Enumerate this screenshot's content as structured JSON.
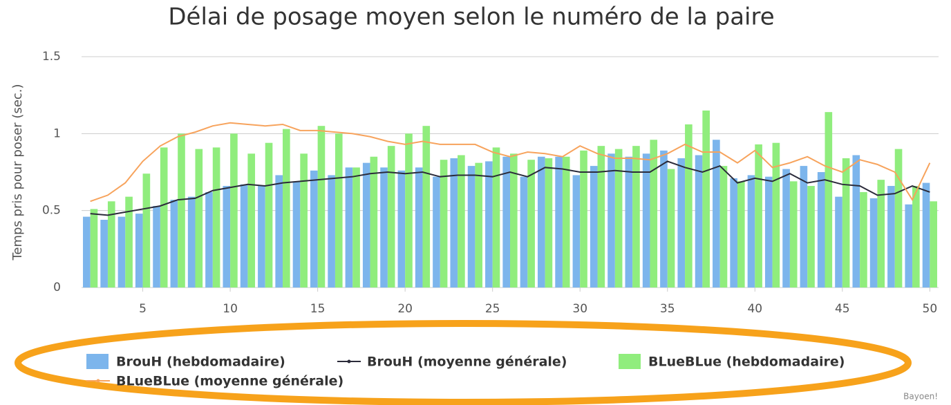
{
  "chart_data": {
    "type": "combo",
    "title": "Délai de posage moyen selon le numéro de la paire",
    "y_label": "Temps pris pour poser (sec.)",
    "credit": "Bayoen!",
    "x": [
      2,
      3,
      4,
      5,
      6,
      7,
      8,
      9,
      10,
      11,
      12,
      13,
      14,
      15,
      16,
      17,
      18,
      19,
      20,
      21,
      22,
      23,
      24,
      25,
      26,
      27,
      28,
      29,
      30,
      31,
      32,
      33,
      34,
      35,
      36,
      37,
      38,
      39,
      40,
      41,
      42,
      43,
      44,
      45,
      46,
      47,
      48,
      49,
      50
    ],
    "xlim": [
      1.5,
      50.5
    ],
    "xticks": [
      5,
      10,
      15,
      20,
      25,
      30,
      35,
      40,
      45,
      50
    ],
    "ylim": [
      0,
      1.5
    ],
    "yticks": [
      0,
      0.5,
      1,
      1.5
    ],
    "grid": true,
    "series": [
      {
        "name": "BrouH (hebdomadaire)",
        "type": "bar",
        "color": "#7cb5ec",
        "values": [
          0.46,
          0.44,
          0.46,
          0.48,
          0.53,
          0.57,
          0.59,
          0.62,
          0.66,
          0.67,
          0.66,
          0.73,
          0.69,
          0.76,
          0.73,
          0.78,
          0.81,
          0.78,
          0.76,
          0.78,
          0.72,
          0.84,
          0.79,
          0.82,
          0.85,
          0.72,
          0.85,
          0.85,
          0.73,
          0.79,
          0.87,
          0.85,
          0.87,
          0.89,
          0.84,
          0.86,
          0.96,
          0.71,
          0.73,
          0.72,
          0.77,
          0.79,
          0.75,
          0.59,
          0.86,
          0.58,
          0.66,
          0.54,
          0.68
        ]
      },
      {
        "name": "BrouH (moyenne générale)",
        "type": "line",
        "color": "#2b2b3a",
        "values": [
          0.48,
          0.47,
          0.49,
          0.51,
          0.53,
          0.57,
          0.58,
          0.63,
          0.65,
          0.67,
          0.66,
          0.68,
          0.69,
          0.7,
          0.71,
          0.72,
          0.74,
          0.75,
          0.74,
          0.75,
          0.72,
          0.73,
          0.73,
          0.72,
          0.75,
          0.72,
          0.78,
          0.77,
          0.75,
          0.75,
          0.76,
          0.75,
          0.75,
          0.82,
          0.78,
          0.75,
          0.79,
          0.68,
          0.71,
          0.69,
          0.74,
          0.68,
          0.7,
          0.67,
          0.66,
          0.6,
          0.61,
          0.66,
          0.62
        ]
      },
      {
        "name": "BLueBLue (hebdomadaire)",
        "type": "bar",
        "color": "#90ed7d",
        "values": [
          0.51,
          0.56,
          0.59,
          0.74,
          0.91,
          1.0,
          0.9,
          0.91,
          1.0,
          0.87,
          0.94,
          1.03,
          0.87,
          1.05,
          1.0,
          0.78,
          0.85,
          0.92,
          1.0,
          1.05,
          0.83,
          0.86,
          0.81,
          0.91,
          0.87,
          0.83,
          0.84,
          0.85,
          0.89,
          0.92,
          0.9,
          0.92,
          0.96,
          0.77,
          1.06,
          1.15,
          0.79,
          0.69,
          0.93,
          0.94,
          0.69,
          0.66,
          1.14,
          0.84,
          0.62,
          0.7,
          0.9,
          0.66,
          0.56
        ]
      },
      {
        "name": "BLueBLue (moyenne générale)",
        "type": "line",
        "color": "#f7a35c",
        "values": [
          0.56,
          0.6,
          0.68,
          0.82,
          0.92,
          0.98,
          1.01,
          1.05,
          1.07,
          1.06,
          1.05,
          1.06,
          1.02,
          1.02,
          1.01,
          1.0,
          0.98,
          0.95,
          0.93,
          0.95,
          0.93,
          0.93,
          0.93,
          0.88,
          0.85,
          0.88,
          0.87,
          0.85,
          0.92,
          0.87,
          0.84,
          0.84,
          0.83,
          0.87,
          0.93,
          0.88,
          0.88,
          0.81,
          0.89,
          0.78,
          0.81,
          0.85,
          0.79,
          0.75,
          0.83,
          0.8,
          0.75,
          0.57,
          0.81
        ]
      }
    ]
  }
}
